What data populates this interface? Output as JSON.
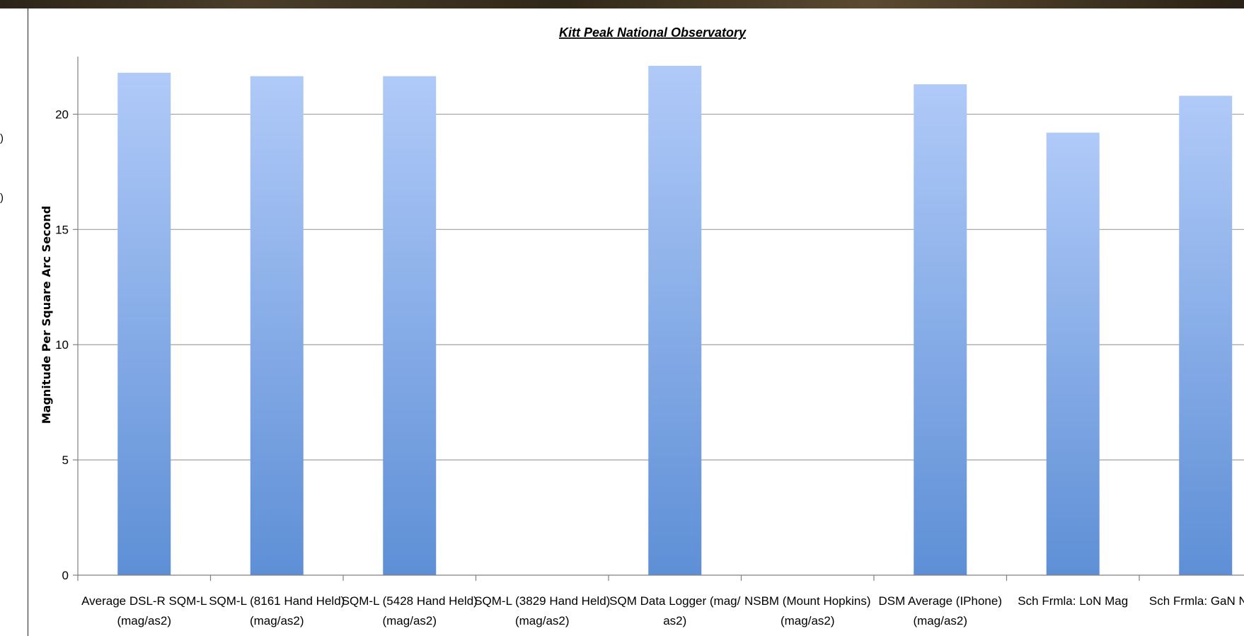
{
  "left_fragments": [
    ")",
    ")"
  ],
  "chart_data": {
    "type": "bar",
    "title": "Kitt Peak National Observatory",
    "ylabel": "Magnitude Per Square Arc Second",
    "xlabel": "",
    "ylim": [
      0,
      22.5
    ],
    "yticks": [
      0,
      5,
      10,
      15,
      20
    ],
    "grid": true,
    "legend": "none",
    "bar_color_top": "#b0caf8",
    "bar_color_bottom": "#5e8fd6",
    "categories": [
      [
        "Average DSL-R SQM-L",
        "(mag/as2)"
      ],
      [
        "SQM-L (8161 Hand Held)",
        "(mag/as2)"
      ],
      [
        "SQM-L (5428 Hand Held)",
        "(mag/as2)"
      ],
      [
        "SQM-L (3829 Hand Held)",
        "(mag/as2)"
      ],
      [
        "SQM Data Logger (mag/",
        "as2)"
      ],
      [
        "NSBM (Mount Hopkins)",
        "(mag/as2)"
      ],
      [
        "DSM Average (IPhone)",
        "(mag/as2)"
      ],
      [
        "Sch Frmla: LoN Mag",
        ""
      ],
      [
        "Sch Frmla: GaN NEL",
        ""
      ]
    ],
    "values": [
      21.8,
      21.65,
      21.65,
      0,
      22.1,
      0,
      21.3,
      19.2,
      20.8
    ]
  }
}
